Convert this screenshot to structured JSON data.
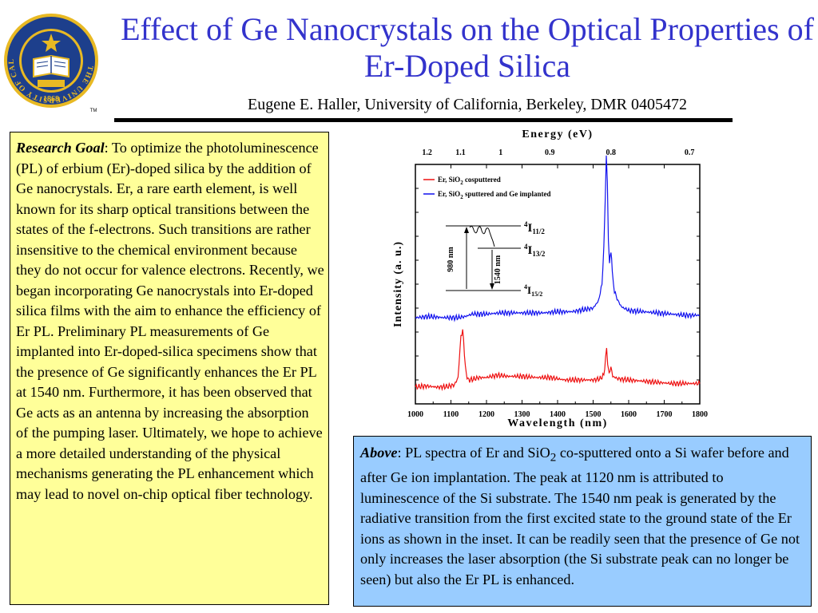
{
  "title": "Effect of Ge Nanocrystals on the Optical Properties of Er-Doped Silica",
  "subtitle": "Eugene E. Haller, University of California, Berkeley, DMR 0405472",
  "seal": {
    "ring_text": "THE UNIVERSITY OF CALIFORNIA • BERKELEY •",
    "year": "1868",
    "tm": "TM",
    "colors": {
      "blue": "#1d3f8c",
      "gold": "#e8b923"
    }
  },
  "research_goal": {
    "lead": "Research Goal",
    "text": ":  To optimize the photoluminescence (PL) of erbium (Er)-doped silica by the addition of Ge nanocrystals.  Er, a rare earth element, is well known for its sharp optical transitions between the states of the f-electrons.  Such transitions are rather insensitive to the chemical environment because they do not occur for valence electrons.  Recently, we began incorporating Ge nanocrystals into Er-doped silica films with the aim to enhance the efficiency of Er PL.  Preliminary PL measurements of Ge implanted into Er-doped-silica specimens show that the presence of Ge significantly enhances the Er PL at 1540 nm.  Furthermore, it has been observed that Ge acts as an antenna by increasing the absorption of the pumping laser.  Ultimately, we hope to achieve a more detailed understanding of the physical mechanisms generating the PL enhancement which may lead to novel on-chip optical fiber technology."
  },
  "caption": {
    "lead": "Above",
    "part1": ": PL spectra of Er and SiO",
    "sub": "2",
    "part2": " co-sputtered onto a Si wafer before and after Ge ion implantation.  The peak at 1120 nm is attributed to luminescence of the Si substrate.  The 1540 nm peak is generated by the radiative transition from the first excited state to the ground state of the Er ions as shown in the inset. It can be readily seen that the presence of Ge not only increases the laser absorption (the Si substrate peak can no longer be seen) but also the Er PL is enhanced."
  },
  "colors": {
    "title": "#3333cc",
    "goal_bg": "#ffff99",
    "caption_bg": "#99ccff",
    "red": "#ee1111",
    "blue": "#1111ee"
  },
  "chart_data": {
    "type": "line",
    "xlabel": "Wavelength (nm)",
    "ylabel": "Intensity (a. u.)",
    "top_axis_label": "Energy (eV)",
    "xlim": [
      1000,
      1800
    ],
    "x_ticks": [
      "1000",
      "1100",
      "1200",
      "1300",
      "1400",
      "1500",
      "1600",
      "1700",
      "1800"
    ],
    "top_ticks": [
      {
        "label": "1.2",
        "wavelength_nm": 1033
      },
      {
        "label": "1.1",
        "wavelength_nm": 1127
      },
      {
        "label": "1",
        "wavelength_nm": 1240
      },
      {
        "label": "0.9",
        "wavelength_nm": 1378
      },
      {
        "label": "0.8",
        "wavelength_nm": 1550
      },
      {
        "label": "0.7",
        "wavelength_nm": 1771
      }
    ],
    "ylim": [
      0,
      10
    ],
    "y_ticks_shown": false,
    "legend_position": "top-left",
    "series": [
      {
        "name": "Er, SiO2 cosputtered",
        "name_main": "Er, SiO",
        "name_sub": "2",
        "name_rest": " cosputtered",
        "color": "#ee1111",
        "points": [
          [
            1000,
            0.7
          ],
          [
            1030,
            0.75
          ],
          [
            1060,
            0.7
          ],
          [
            1090,
            0.72
          ],
          [
            1110,
            0.8
          ],
          [
            1120,
            1.1
          ],
          [
            1128,
            2.8
          ],
          [
            1133,
            3.1
          ],
          [
            1138,
            2.1
          ],
          [
            1143,
            1.2
          ],
          [
            1150,
            1.0
          ],
          [
            1160,
            1.02
          ],
          [
            1180,
            1.1
          ],
          [
            1200,
            1.1
          ],
          [
            1230,
            1.2
          ],
          [
            1260,
            1.15
          ],
          [
            1300,
            1.15
          ],
          [
            1340,
            1.1
          ],
          [
            1380,
            1.1
          ],
          [
            1420,
            1.0
          ],
          [
            1460,
            1.0
          ],
          [
            1500,
            1.0
          ],
          [
            1520,
            1.05
          ],
          [
            1530,
            1.2
          ],
          [
            1535,
            1.9
          ],
          [
            1538,
            2.3
          ],
          [
            1541,
            1.7
          ],
          [
            1545,
            1.25
          ],
          [
            1550,
            1.55
          ],
          [
            1555,
            1.15
          ],
          [
            1570,
            1.05
          ],
          [
            1600,
            1.0
          ],
          [
            1640,
            0.95
          ],
          [
            1680,
            0.9
          ],
          [
            1720,
            0.85
          ],
          [
            1760,
            0.85
          ],
          [
            1800,
            0.85
          ]
        ]
      },
      {
        "name": "Er, SiO2 sputtered and Ge implanted",
        "name_main": "Er, SiO",
        "name_sub": "2",
        "name_rest": " sputtered and Ge implanted",
        "color": "#1111ee",
        "points": [
          [
            1000,
            3.6
          ],
          [
            1040,
            3.65
          ],
          [
            1080,
            3.6
          ],
          [
            1120,
            3.6
          ],
          [
            1140,
            3.65
          ],
          [
            1160,
            3.75
          ],
          [
            1200,
            3.75
          ],
          [
            1240,
            3.8
          ],
          [
            1280,
            3.8
          ],
          [
            1320,
            3.8
          ],
          [
            1360,
            3.8
          ],
          [
            1400,
            3.85
          ],
          [
            1440,
            3.85
          ],
          [
            1480,
            3.95
          ],
          [
            1500,
            4.0
          ],
          [
            1515,
            4.3
          ],
          [
            1525,
            5.0
          ],
          [
            1530,
            6.5
          ],
          [
            1534,
            8.5
          ],
          [
            1537,
            10.3
          ],
          [
            1540,
            9.2
          ],
          [
            1543,
            6.8
          ],
          [
            1546,
            5.9
          ],
          [
            1550,
            6.4
          ],
          [
            1554,
            5.6
          ],
          [
            1560,
            4.7
          ],
          [
            1570,
            4.3
          ],
          [
            1580,
            4.05
          ],
          [
            1600,
            3.9
          ],
          [
            1640,
            3.85
          ],
          [
            1680,
            3.8
          ],
          [
            1720,
            3.75
          ],
          [
            1760,
            3.7
          ],
          [
            1800,
            3.7
          ]
        ]
      }
    ],
    "inset": {
      "levels": [
        {
          "sup": "4",
          "main": "I",
          "sub": "11/2"
        },
        {
          "sup": "4",
          "main": "I",
          "sub": "13/2"
        },
        {
          "sup": "4",
          "main": "I",
          "sub": "15/2"
        }
      ],
      "arrow_up_label": "980 nm",
      "arrow_down_label": "1540 nm"
    }
  }
}
